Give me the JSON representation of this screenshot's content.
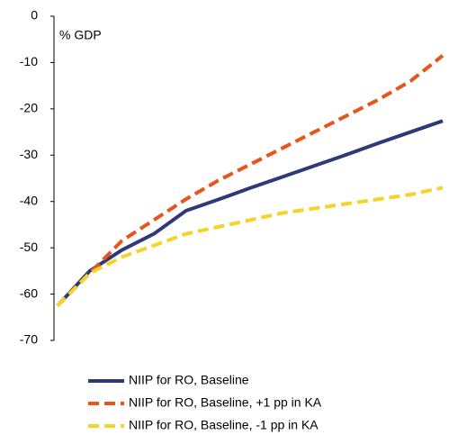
{
  "chart_data": {
    "type": "line",
    "annotation": "% GDP",
    "categories": [
      null,
      null,
      null,
      null,
      null,
      null,
      null,
      null,
      null,
      null,
      null,
      null,
      null
    ],
    "series": [
      {
        "name": "NIIP for RO, Baseline",
        "color": "#2e3a78",
        "dash": "solid",
        "values": [
          -62.5,
          -55,
          -50.5,
          -47,
          -42,
          -39.6,
          -37.1,
          -34.7,
          -32.3,
          -29.9,
          -27.4,
          -25,
          -22.6
        ]
      },
      {
        "name": "NIIP for RO, Baseline, +1 pp in KA",
        "color": "#e8541e",
        "dash": "dashed",
        "values": [
          -62.5,
          -55.5,
          -48.5,
          -44,
          -39.5,
          -35.5,
          -32,
          -28.5,
          -25,
          -21.5,
          -18,
          -14,
          -8.5
        ]
      },
      {
        "name": "NIIP for RO, Baseline, -1 pp in KA",
        "color": "#f5d327",
        "dash": "dashed",
        "values": [
          -62.5,
          -55.5,
          -52,
          -49.5,
          -47,
          -45.5,
          -44,
          -42.5,
          -41.5,
          -40.5,
          -39.5,
          -38.5,
          -37
        ]
      }
    ],
    "ylim": [
      -70,
      0
    ],
    "yticks": [
      -70,
      -60,
      -50,
      -40,
      -30,
      -20,
      -10,
      0
    ]
  }
}
